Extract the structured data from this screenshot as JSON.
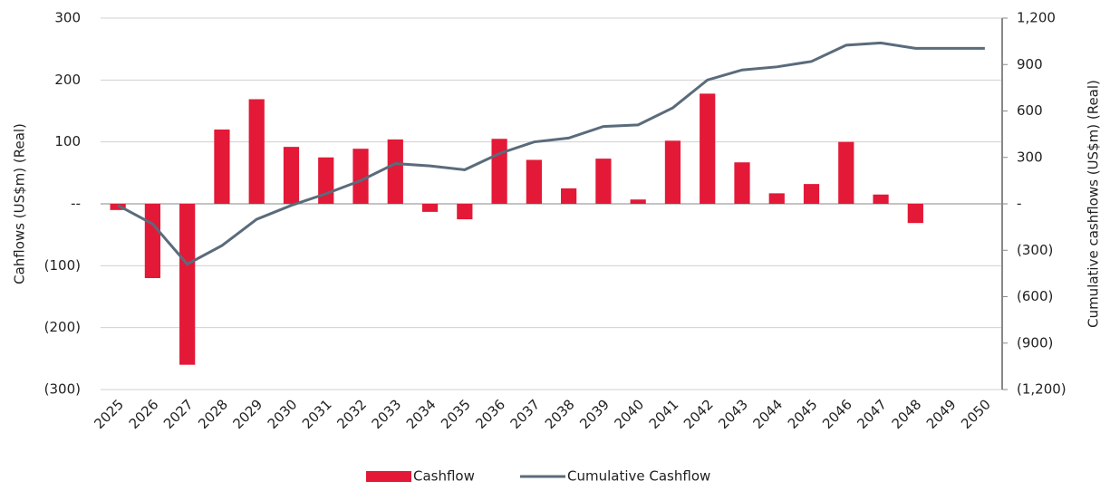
{
  "chart_data": {
    "type": "bar-line",
    "y_label": "Cahflows (US$m) (Real)",
    "y2_label": "Cumulative cashflows (US$m) (Real)",
    "categories": [
      "2025",
      "2026",
      "2027",
      "2028",
      "2029",
      "2030",
      "2031",
      "2032",
      "2033",
      "2034",
      "2035",
      "2036",
      "2037",
      "2038",
      "2039",
      "2040",
      "2041",
      "2042",
      "2043",
      "2044",
      "2045",
      "2046",
      "2047",
      "2048",
      "2049",
      "2050"
    ],
    "series": [
      {
        "name": "Cashflow",
        "type": "bar",
        "color": "#e31937",
        "values": [
          -10,
          -120,
          -260,
          120,
          169,
          92,
          75,
          89,
          104,
          -13,
          -25,
          105,
          71,
          25,
          73,
          7,
          102,
          178,
          67,
          17,
          32,
          100,
          15,
          -31,
          0,
          0
        ]
      },
      {
        "name": "Cumulative Cashflow",
        "type": "line",
        "axis": "y2",
        "color": "#5a6b7b",
        "values": [
          -10,
          -130,
          -390,
          -270,
          -100,
          -10,
          65,
          150,
          260,
          245,
          220,
          325,
          400,
          425,
          500,
          510,
          620,
          800,
          865,
          885,
          920,
          1025,
          1040,
          1005,
          1005,
          1005
        ]
      }
    ],
    "ylim": [
      -300,
      300
    ],
    "yticks": [
      300,
      200,
      100,
      {
        "value": 0,
        "label": "--"
      },
      {
        "value": -100,
        "label": "(100)"
      },
      {
        "value": -200,
        "label": "(200)"
      },
      {
        "value": -300,
        "label": "(300)"
      }
    ],
    "y2lim": [
      -1200,
      1200
    ],
    "y2ticks": [
      {
        "value": 1200,
        "label": "1,200"
      },
      900,
      600,
      300,
      {
        "value": 0,
        "label": "-"
      },
      {
        "value": -300,
        "label": "(300)"
      },
      {
        "value": -600,
        "label": "(600)"
      },
      {
        "value": -900,
        "label": "(900)"
      },
      {
        "value": -1200,
        "label": "(1,200)"
      }
    ],
    "grid": true,
    "legend": "bottom"
  }
}
